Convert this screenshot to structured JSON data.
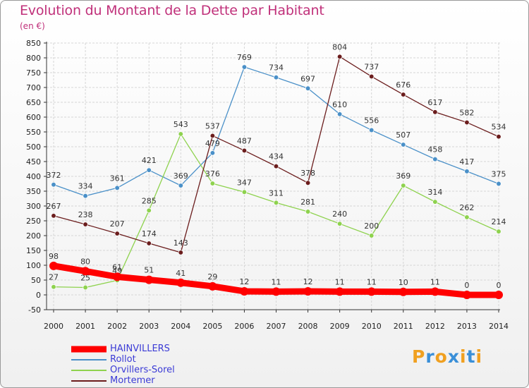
{
  "chart_data": {
    "type": "line",
    "title": "Evolution du Montant de la Dette par Habitant",
    "subtitle": "(en €)",
    "xlabel": "",
    "ylabel": "",
    "ylim": [
      -50,
      850
    ],
    "yticks": [
      -50,
      0,
      50,
      100,
      150,
      200,
      250,
      300,
      350,
      400,
      450,
      500,
      550,
      600,
      650,
      700,
      750,
      800,
      850
    ],
    "ytick_labels": [
      "-50",
      "0",
      "50",
      "100",
      "150",
      "200",
      "250",
      "300",
      "350",
      "400",
      "450",
      "500",
      "550",
      "600",
      "650",
      "700",
      "750",
      "800",
      "850"
    ],
    "x": [
      "2000",
      "2001",
      "2002",
      "2003",
      "2004",
      "2005",
      "2006",
      "2007",
      "2008",
      "2009",
      "2010",
      "2011",
      "2012",
      "2013",
      "2014"
    ],
    "grid": true,
    "legend_position": "bottom-left",
    "series": [
      {
        "name": "Rollot",
        "color": "#4a90c8",
        "values": [
          372,
          334,
          361,
          421,
          369,
          479,
          769,
          734,
          697,
          610,
          556,
          507,
          458,
          417,
          375
        ],
        "labels": [
          "372",
          "334",
          "361",
          "421",
          "369",
          "479",
          "769",
          "734",
          "697",
          "610",
          "556",
          "507",
          "458",
          "417",
          "375"
        ]
      },
      {
        "name": "Orvillers-Sorel",
        "color": "#8ed24e",
        "values": [
          27,
          25,
          49,
          285,
          543,
          376,
          347,
          311,
          281,
          240,
          200,
          369,
          314,
          262,
          214
        ],
        "labels": [
          "27",
          "25",
          "49",
          "285",
          "543",
          "376",
          "347",
          "311",
          "281",
          "240",
          "200",
          "369",
          "314",
          "262",
          "214"
        ]
      },
      {
        "name": "Mortemer",
        "color": "#6b1d1d",
        "values": [
          267,
          238,
          207,
          174,
          143,
          537,
          487,
          434,
          378,
          804,
          737,
          676,
          617,
          582,
          534
        ],
        "labels": [
          "267",
          "238",
          "207",
          "174",
          "143",
          "537",
          "487",
          "434",
          "378",
          "804",
          "737",
          "676",
          "617",
          "582",
          "534"
        ]
      },
      {
        "name": "HAINVILLERS",
        "color": "#ff0000",
        "values": [
          98,
          80,
          61,
          51,
          41,
          29,
          12,
          11,
          12,
          11,
          11,
          10,
          11,
          0,
          0
        ],
        "labels": [
          "98",
          "80",
          "61",
          "51",
          "41",
          "29",
          "12",
          "11",
          "12",
          "11",
          "11",
          "10",
          "11",
          "0",
          "0"
        ]
      }
    ],
    "legend_order": [
      "HAINVILLERS",
      "Rollot",
      "Orvillers-Sorel",
      "Mortemer"
    ]
  },
  "logo": {
    "text": "Proxiti",
    "letters": [
      "P",
      "r",
      "o",
      "x",
      "i",
      "t",
      "i"
    ],
    "colors": [
      "#f0a020",
      "#3a8fd8",
      "#f0a020",
      "#3a8fd8",
      "#f0a020",
      "#3a8fd8",
      "#f0a020"
    ]
  }
}
